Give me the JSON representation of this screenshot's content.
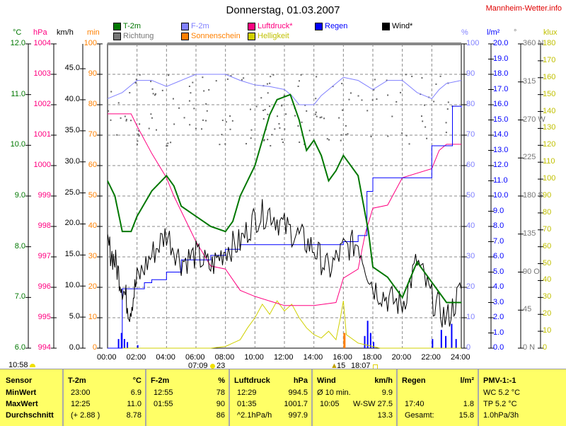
{
  "title": "Donnerstag, 01.03.2007",
  "brand": "Mannheim-Wetter.info",
  "legend": [
    {
      "label": "T-2m",
      "color": "#007700"
    },
    {
      "label": "Richtung",
      "color": "#777777"
    },
    {
      "label": "F-2m",
      "color": "#8080ff"
    },
    {
      "label": "Sonnenschein",
      "color": "#ff8000"
    },
    {
      "label": "Luftdruck*",
      "color": "#ff0080"
    },
    {
      "label": "Helligkeit",
      "color": "#d0d000"
    },
    {
      "label": "Regen",
      "color": "#0000ff"
    },
    {
      "label": "Wind*",
      "color": "#000000"
    }
  ],
  "units": {
    "c": "°C",
    "hpa": "hPa",
    "kmh": "km/h",
    "min": "min",
    "pct": "%",
    "lm2": "l/m²",
    "deg": "°",
    "klux": "klux"
  },
  "chart_data": {
    "type": "line",
    "title": "Donnerstag, 01.03.2007",
    "x_ticks": [
      "00:00",
      "02:00",
      "04:00",
      "06:00",
      "08:00",
      "10:00",
      "12:00",
      "14:00",
      "16:00",
      "18:00",
      "20:00",
      "22:00",
      "24:00"
    ],
    "axes": {
      "c": {
        "range": [
          6,
          12
        ],
        "ticks": [
          "12.0",
          "11.0",
          "10.0",
          "9.0",
          "8.0",
          "7.0",
          "6.0"
        ]
      },
      "hpa": {
        "range": [
          994,
          1004
        ],
        "ticks": [
          "1004",
          "1003",
          "1002",
          "1001",
          "1000",
          "999",
          "998",
          "997",
          "996",
          "995",
          "994"
        ]
      },
      "kmh": {
        "range": [
          0,
          49
        ],
        "ticks": [
          "45.0",
          "40.0",
          "35.0",
          "30.0",
          "25.0",
          "20.0",
          "15.0",
          "10.0",
          "5.0",
          "0.0"
        ]
      },
      "min": {
        "range": [
          0,
          100
        ],
        "ticks": [
          "100",
          "90",
          "80",
          "70",
          "60",
          "50",
          "40",
          "30",
          "20",
          "10",
          "0"
        ]
      },
      "pct": {
        "range": [
          0,
          100
        ],
        "ticks": [
          "100",
          "90",
          "80",
          "70",
          "60",
          "50",
          "40",
          "30",
          "20",
          "10",
          "0"
        ]
      },
      "lm2": {
        "range": [
          0,
          20
        ],
        "ticks": [
          "20.0",
          "19.0",
          "18.0",
          "17.0",
          "16.0",
          "15.0",
          "14.0",
          "13.0",
          "12.0",
          "11.0",
          "10.0",
          "9.0",
          "8.0",
          "7.0",
          "6.0",
          "5.0",
          "4.0",
          "3.0",
          "2.0",
          "1.0",
          "0.0"
        ]
      },
      "deg": {
        "range": [
          0,
          360
        ],
        "ticks": [
          "360 N",
          "315",
          "270 W",
          "225",
          "180 S",
          "135",
          "90 O",
          "45",
          "0 N"
        ]
      },
      "klux": {
        "range": [
          0,
          180
        ],
        "ticks": [
          "180",
          "170",
          "160",
          "150",
          "140",
          "130",
          "120",
          "110",
          "100",
          "90",
          "80",
          "70",
          "60",
          "50",
          "40",
          "30",
          "20",
          "10",
          "0"
        ]
      }
    },
    "series": [
      {
        "name": "F-2m",
        "axis": "pct",
        "color": "#8080ff",
        "points": [
          [
            0,
            82
          ],
          [
            1,
            84
          ],
          [
            2,
            88
          ],
          [
            3,
            88
          ],
          [
            4,
            86
          ],
          [
            5,
            88
          ],
          [
            6,
            90
          ],
          [
            7,
            90
          ],
          [
            8,
            90
          ],
          [
            9,
            88
          ],
          [
            10,
            86.5
          ],
          [
            11,
            86
          ],
          [
            12,
            85
          ],
          [
            12.5,
            83
          ],
          [
            13,
            80
          ],
          [
            14,
            80
          ],
          [
            14.5,
            83
          ],
          [
            15,
            85
          ],
          [
            16,
            89
          ],
          [
            17,
            88
          ],
          [
            18,
            85
          ],
          [
            19,
            88
          ],
          [
            20,
            88
          ],
          [
            21,
            84
          ],
          [
            22,
            82
          ],
          [
            22.5,
            85
          ],
          [
            23,
            87
          ],
          [
            24,
            88
          ]
        ]
      },
      {
        "name": "Helligkeit",
        "axis": "klux",
        "color": "#d0d000",
        "points": [
          [
            0,
            0
          ],
          [
            7,
            0
          ],
          [
            8,
            1
          ],
          [
            8.5,
            3
          ],
          [
            9,
            5
          ],
          [
            9.5,
            12
          ],
          [
            10,
            18
          ],
          [
            10.5,
            26
          ],
          [
            11,
            20
          ],
          [
            11.5,
            28
          ],
          [
            12,
            22
          ],
          [
            12.5,
            26
          ],
          [
            13,
            18
          ],
          [
            13.5,
            12
          ],
          [
            14,
            8
          ],
          [
            14.5,
            6
          ],
          [
            15,
            10
          ],
          [
            15.5,
            5
          ],
          [
            15.8,
            18
          ],
          [
            16,
            28
          ],
          [
            16.2,
            8
          ],
          [
            17,
            3
          ],
          [
            18,
            1
          ],
          [
            18.5,
            0
          ],
          [
            24,
            0
          ]
        ]
      },
      {
        "name": "Luftdruck*",
        "axis": "hpa",
        "color": "#ff0080",
        "points": [
          [
            0,
            1001.7
          ],
          [
            1.6,
            1001.7
          ],
          [
            2,
            1001.3
          ],
          [
            3,
            1000.4
          ],
          [
            4,
            999.6
          ],
          [
            4.5,
            999.0
          ],
          [
            5,
            998.5
          ],
          [
            6,
            997.5
          ],
          [
            7,
            996.7
          ],
          [
            8,
            996.6
          ],
          [
            9,
            995.9
          ],
          [
            10,
            995.7
          ],
          [
            12,
            995.4
          ],
          [
            14,
            995.4
          ],
          [
            15.5,
            995.5
          ],
          [
            16,
            996.3
          ],
          [
            17,
            996.6
          ],
          [
            17.5,
            997.8
          ],
          [
            18,
            998.6
          ],
          [
            19,
            998.7
          ],
          [
            20,
            999.6
          ],
          [
            22,
            999.9
          ],
          [
            22.5,
            1000.5
          ],
          [
            23,
            1000.7
          ],
          [
            24,
            1000.7
          ]
        ]
      },
      {
        "name": "Regen",
        "axis": "lm2",
        "color": "#0000ff",
        "step": true,
        "points": [
          [
            0,
            0
          ],
          [
            1,
            3.9
          ],
          [
            2.5,
            4.3
          ],
          [
            3,
            4.5
          ],
          [
            4,
            5.0
          ],
          [
            5,
            5.8
          ],
          [
            7,
            6.1
          ],
          [
            8,
            6.5
          ],
          [
            9,
            6.8
          ],
          [
            16,
            7.0
          ],
          [
            17,
            7.4
          ],
          [
            17.6,
            10.3
          ],
          [
            18,
            11.2
          ],
          [
            22,
            13.3
          ],
          [
            23.4,
            15.9
          ],
          [
            24,
            15.8
          ]
        ]
      },
      {
        "name": "Wind*",
        "axis": "kmh",
        "color": "#000000",
        "jitter": true,
        "points": [
          [
            0,
            16.7
          ],
          [
            0.5,
            14
          ],
          [
            1,
            10
          ],
          [
            1.5,
            6
          ],
          [
            2,
            11
          ],
          [
            3,
            15
          ],
          [
            4,
            18.5
          ],
          [
            5,
            14
          ],
          [
            6,
            15
          ],
          [
            7,
            13
          ],
          [
            8,
            16
          ],
          [
            9,
            17
          ],
          [
            10,
            21
          ],
          [
            11,
            22
          ],
          [
            12,
            19.5
          ],
          [
            13,
            18
          ],
          [
            14,
            16
          ],
          [
            15,
            12.5
          ],
          [
            16,
            16
          ],
          [
            17,
            17
          ],
          [
            18,
            10
          ],
          [
            19,
            8
          ],
          [
            20,
            7
          ],
          [
            21,
            14
          ],
          [
            22,
            8
          ],
          [
            23,
            4.5
          ],
          [
            24,
            9.5
          ]
        ]
      },
      {
        "name": "T-2m",
        "axis": "c",
        "color": "#007700",
        "points": [
          [
            0,
            9.3
          ],
          [
            0.5,
            9.0
          ],
          [
            1,
            8.3
          ],
          [
            1.6,
            8.3
          ],
          [
            2,
            8.6
          ],
          [
            3,
            9.1
          ],
          [
            4,
            9.4
          ],
          [
            4.5,
            9.2
          ],
          [
            5,
            8.8
          ],
          [
            6,
            8.6
          ],
          [
            7,
            8.4
          ],
          [
            8,
            8.3
          ],
          [
            8.5,
            8.5
          ],
          [
            9,
            9.0
          ],
          [
            9.5,
            9.3
          ],
          [
            10,
            9.6
          ],
          [
            11,
            10.6
          ],
          [
            11.5,
            10.9
          ],
          [
            12.4,
            11.0
          ],
          [
            13,
            10.5
          ],
          [
            13.5,
            9.9
          ],
          [
            14,
            10.1
          ],
          [
            14.5,
            9.8
          ],
          [
            15,
            9.3
          ],
          [
            15.5,
            9.5
          ],
          [
            16,
            9.8
          ],
          [
            17,
            9.4
          ],
          [
            17.7,
            8.3
          ],
          [
            18,
            7.6
          ],
          [
            19,
            7.4
          ],
          [
            20,
            7.0
          ],
          [
            21,
            7.7
          ],
          [
            22,
            7.3
          ],
          [
            23,
            6.9
          ],
          [
            24,
            6.9
          ]
        ]
      }
    ],
    "rain_bars": {
      "axis": "pct",
      "color": "#0000ff",
      "points": [
        [
          0.7,
          3
        ],
        [
          0.9,
          5
        ],
        [
          1.1,
          3
        ],
        [
          1.3,
          2
        ],
        [
          2.0,
          1
        ],
        [
          17.4,
          4
        ],
        [
          17.6,
          9
        ],
        [
          17.8,
          5
        ],
        [
          18.0,
          2
        ],
        [
          22.0,
          3
        ],
        [
          22.6,
          6
        ],
        [
          22.9,
          4
        ],
        [
          23.3,
          8
        ],
        [
          23.6,
          3
        ]
      ]
    },
    "sun_bars": {
      "axis": "min",
      "color": "#ff8000",
      "points": [
        [
          16.0,
          5
        ]
      ]
    }
  },
  "astro": {
    "time_left": "10:58",
    "sunrise": "07:09",
    "sun_num": "23",
    "moon_num": "15",
    "sunset": "18:07"
  },
  "table": {
    "sensor": {
      "h": "Sensor",
      "r": [
        "MinWert",
        "MaxWert",
        "Durchschnitt"
      ]
    },
    "t2m": {
      "h": "T-2m",
      "u": "°C",
      "r": [
        [
          "23:00",
          "6.9"
        ],
        [
          "12:25",
          "11.0"
        ],
        [
          "(+ 2.88 )",
          "8.78"
        ]
      ]
    },
    "f2m": {
      "h": "F-2m",
      "u": "%",
      "r": [
        [
          "12:55",
          "78"
        ],
        [
          "01:55",
          "90"
        ],
        [
          "",
          "86"
        ]
      ]
    },
    "luft": {
      "h": "Luftdruck",
      "u": "hPa",
      "r": [
        [
          "12:29",
          "994.5"
        ],
        [
          "01:35",
          "1001.7"
        ],
        [
          "^2.1hPa/h",
          "997.9"
        ]
      ]
    },
    "wind": {
      "h": "Wind",
      "u": "km/h",
      "r": [
        [
          "Ø 10 min.",
          "9.9"
        ],
        [
          "10:05",
          "W-SW 27.5"
        ],
        [
          "",
          "13.3"
        ]
      ]
    },
    "regen": {
      "h": "Regen",
      "u": "l/m²",
      "r": [
        [
          "",
          ""
        ],
        [
          "17:40",
          "1.8"
        ],
        [
          "Gesamt:",
          "15.8"
        ]
      ]
    },
    "pmv": {
      "h": "PMV-1:-1",
      "r": [
        "WC 5.2 °C",
        "TP 5.2 °C",
        "1.0hPa/3h"
      ]
    }
  }
}
